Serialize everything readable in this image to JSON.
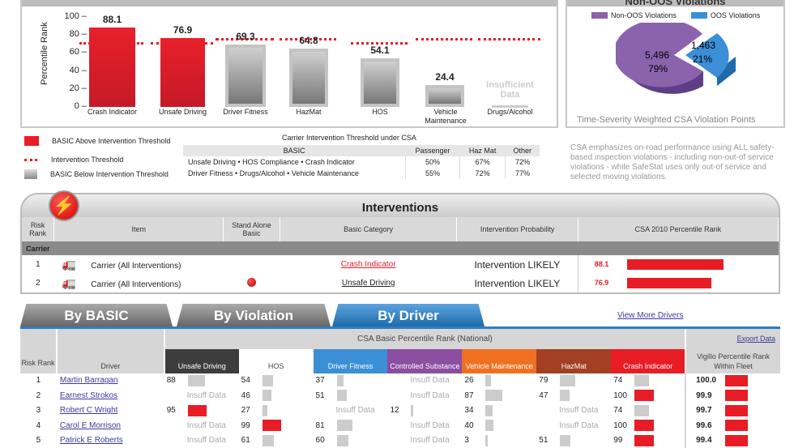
{
  "chart_data": [
    {
      "type": "bar",
      "title": "",
      "ylabel": "Percentile Rank",
      "ylim": [
        0,
        100
      ],
      "yticks": [
        0,
        20,
        40,
        60,
        80,
        100
      ],
      "categories": [
        "Crash Indicator",
        "Unsafe Driving",
        "Driver Fitness",
        "HazMat",
        "HOS",
        "Vehicle Maintenance",
        "Drugs/Alcohol"
      ],
      "values": [
        88.1,
        76.9,
        69.3,
        64.8,
        54.1,
        24.4,
        null
      ],
      "value_labels": [
        "88.1",
        "76.9",
        "69.3",
        "64.8",
        "54.1",
        "24.4",
        "Insufficient Data"
      ],
      "thresholds": [
        72,
        72,
        77,
        77,
        72,
        77,
        77
      ],
      "above_threshold": [
        true,
        true,
        false,
        false,
        false,
        false,
        false
      ]
    },
    {
      "type": "pie",
      "title": "Non-OOS Violations",
      "caption": "Time-Severity Weighted CSA Violation Points",
      "legend": [
        "Non-OOS Violations",
        "OOS Violations"
      ],
      "slices": [
        {
          "label": "Non-OOS Violations",
          "value": 5496,
          "text": "5,496",
          "pct": "79%",
          "color": "#8b63ad"
        },
        {
          "label": "OOS Violations",
          "value": 1463,
          "text": "1,463",
          "pct": "21%",
          "color": "#3b8fd6"
        }
      ]
    }
  ],
  "legend": {
    "above": "BASIC Above Intervention Threshold",
    "threshold": "Intervention Threshold",
    "below": "BASIC Below Intervention Threshold"
  },
  "threshold_table": {
    "title": "Carrier Intervention Threshold under CSA",
    "headers": [
      "BASIC",
      "Passenger",
      "Haz Mat",
      "Other"
    ],
    "rows": [
      [
        "Unsafe Driving • HOS Compliance • Crash Indicator",
        "50%",
        "67%",
        "72%"
      ],
      [
        "Driver Fitness • Drugs/Alcohol • Vehicle Maintenance",
        "55%",
        "72%",
        "77%"
      ]
    ]
  },
  "note": "CSA emphasizes on-road performance using ALL safety-based inspection violations - including non-out-of service violations - while SafeStat uses only out-of service and selected moving violations.",
  "interventions": {
    "title": "Interventions",
    "headers": [
      "Risk Rank",
      "Item",
      "Stand Alone Basic",
      "Basic Category",
      "Intervention Probability",
      "CSA 2010 Percentile Rank"
    ],
    "group": "Carrier",
    "rows": [
      {
        "rank": "1",
        "item": "Carrier (All Interventions)",
        "standalone": false,
        "category": "Crash Indicator",
        "cat_red": true,
        "prob": "Intervention LIKELY",
        "pct": "88.1",
        "value": 88.1
      },
      {
        "rank": "2",
        "item": "Carrier (All Interventions)",
        "standalone": true,
        "category": "Unsafe Driving",
        "cat_red": false,
        "prob": "Intervention LIKELY",
        "pct": "76.9",
        "value": 76.9
      }
    ]
  },
  "tabs": [
    "By BASIC",
    "By Violation",
    "By Driver"
  ],
  "view_more": "View More Drivers",
  "drivers": {
    "group_header": "CSA Basic Percentile Rank (National)",
    "export": "Export Data",
    "rank_header": "Risk Rank",
    "driver_header": "Driver",
    "vigillo_header": "Vigillo Percentile Rank Within Fleet",
    "columns": [
      {
        "name": "Unsafe Driving",
        "color": "#3d3d3d"
      },
      {
        "name": "HOS",
        "color": "#ffffff"
      },
      {
        "name": "Driver Fitness",
        "color": "#3b8fd6"
      },
      {
        "name": "Controlled Substance",
        "color": "#8b4ea0"
      },
      {
        "name": "Vehicle Maintenance",
        "color": "#f07022"
      },
      {
        "name": "HazMat",
        "color": "#a33f22"
      },
      {
        "name": "Crash Indicator",
        "color": "#e81c25"
      }
    ],
    "insuff": "Insuff Data",
    "rows": [
      {
        "rank": "1",
        "name": "Martin Barragan",
        "cells": [
          [
            88,
            0
          ],
          [
            54,
            0
          ],
          [
            37,
            0
          ],
          null,
          [
            26,
            0
          ],
          [
            79,
            0
          ],
          [
            74,
            0
          ]
        ],
        "vigillo": "100.0"
      },
      {
        "rank": "2",
        "name": "Earnest Strokos",
        "cells": [
          null,
          [
            46,
            0
          ],
          [
            51,
            0
          ],
          null,
          [
            87,
            0
          ],
          [
            47,
            0
          ],
          [
            100,
            1
          ]
        ],
        "vigillo": "99.9"
      },
      {
        "rank": "3",
        "name": "Robert C Wright",
        "cells": [
          [
            95,
            1
          ],
          [
            27,
            0
          ],
          null,
          [
            12,
            0
          ],
          [
            34,
            0
          ],
          null,
          [
            74,
            0
          ]
        ],
        "vigillo": "99.7"
      },
      {
        "rank": "4",
        "name": "Carol E Morrison",
        "cells": [
          null,
          [
            99,
            1
          ],
          [
            81,
            0
          ],
          null,
          [
            40,
            0
          ],
          null,
          [
            100,
            1
          ]
        ],
        "vigillo": "99.6"
      },
      {
        "rank": "5",
        "name": "Patrick E Roberts",
        "cells": [
          null,
          [
            61,
            0
          ],
          [
            60,
            0
          ],
          null,
          [
            3,
            0
          ],
          [
            51,
            0
          ],
          [
            99,
            1
          ]
        ],
        "vigillo": "99.4"
      }
    ]
  }
}
